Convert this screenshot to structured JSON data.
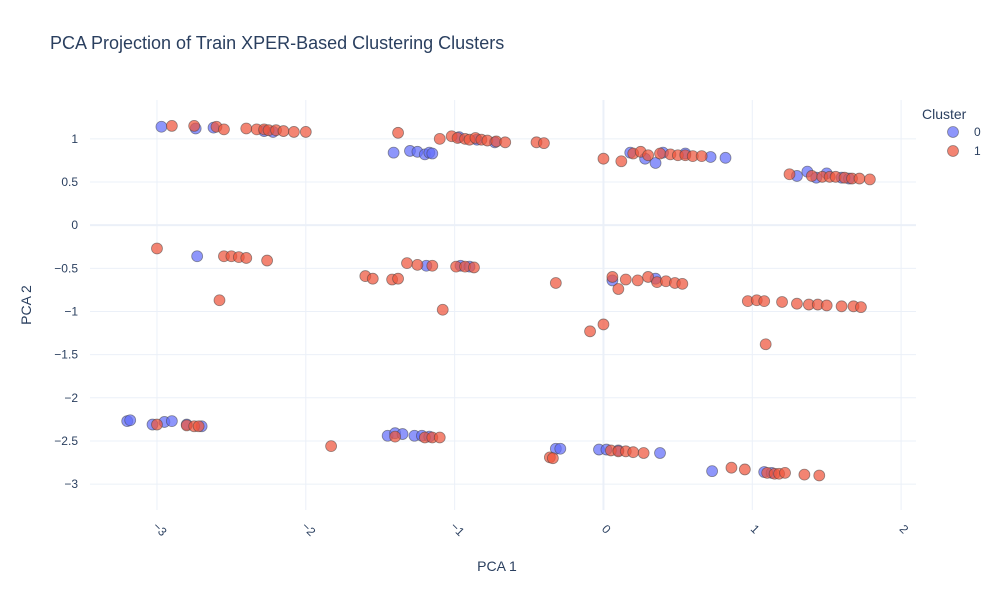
{
  "chart_data": {
    "type": "scatter",
    "title": "PCA Projection of Train XPER-Based Clustering Clusters",
    "xlabel": "PCA 1",
    "ylabel": "PCA 2",
    "xlim": [
      -3.45,
      2.1
    ],
    "ylim": [
      -3.3,
      1.45
    ],
    "x_ticks": [
      -3,
      -2,
      -1,
      0,
      1,
      2
    ],
    "x_tick_labels": [
      "−3",
      "−2",
      "−1",
      "0",
      "1",
      "2"
    ],
    "y_ticks": [
      1,
      0.5,
      0,
      -0.5,
      -1,
      -1.5,
      -2,
      -2.5,
      -3
    ],
    "y_tick_labels": [
      "1",
      "0.5",
      "0",
      "−0.5",
      "−1",
      "−1.5",
      "−2",
      "−2.5",
      "−3"
    ],
    "grid": true,
    "legend": {
      "title": "Cluster",
      "position": "top-right"
    },
    "colors": {
      "0": "#636efa",
      "1": "#ef553b"
    },
    "series": [
      {
        "name": "0",
        "points": [
          [
            -2.97,
            1.14
          ],
          [
            -2.74,
            1.12
          ],
          [
            -2.62,
            1.13
          ],
          [
            -2.28,
            1.09
          ],
          [
            -2.22,
            1.08
          ],
          [
            -1.41,
            0.84
          ],
          [
            -1.3,
            0.86
          ],
          [
            -1.25,
            0.85
          ],
          [
            -1.2,
            0.82
          ],
          [
            -1.17,
            0.84
          ],
          [
            -1.15,
            0.83
          ],
          [
            -0.97,
            1.02
          ],
          [
            -0.85,
            0.99
          ],
          [
            -0.73,
            0.96
          ],
          [
            0.18,
            0.84
          ],
          [
            0.28,
            0.77
          ],
          [
            0.35,
            0.72
          ],
          [
            0.4,
            0.84
          ],
          [
            0.55,
            0.83
          ],
          [
            0.72,
            0.79
          ],
          [
            0.82,
            0.78
          ],
          [
            1.3,
            0.57
          ],
          [
            1.37,
            0.62
          ],
          [
            1.43,
            0.55
          ],
          [
            1.5,
            0.6
          ],
          [
            1.6,
            0.55
          ],
          [
            1.65,
            0.54
          ],
          [
            -2.73,
            -0.36
          ],
          [
            -1.19,
            -0.47
          ],
          [
            -0.96,
            -0.47
          ],
          [
            -0.9,
            -0.48
          ],
          [
            0.06,
            -0.64
          ],
          [
            0.35,
            -0.62
          ],
          [
            -3.2,
            -2.27
          ],
          [
            -3.18,
            -2.26
          ],
          [
            -3.03,
            -2.31
          ],
          [
            -2.95,
            -2.28
          ],
          [
            -2.9,
            -2.27
          ],
          [
            -2.8,
            -2.31
          ],
          [
            -2.7,
            -2.33
          ],
          [
            -1.45,
            -2.44
          ],
          [
            -1.4,
            -2.41
          ],
          [
            -1.35,
            -2.42
          ],
          [
            -1.27,
            -2.44
          ],
          [
            -1.22,
            -2.44
          ],
          [
            -1.17,
            -2.45
          ],
          [
            -0.32,
            -2.59
          ],
          [
            -0.29,
            -2.59
          ],
          [
            -0.03,
            -2.6
          ],
          [
            0.02,
            -2.6
          ],
          [
            0.1,
            -2.61
          ],
          [
            0.38,
            -2.64
          ],
          [
            0.73,
            -2.85
          ],
          [
            1.08,
            -2.86
          ],
          [
            1.13,
            -2.87
          ]
        ]
      },
      {
        "name": "1",
        "points": [
          [
            -2.9,
            1.15
          ],
          [
            -2.75,
            1.15
          ],
          [
            -2.6,
            1.14
          ],
          [
            -2.55,
            1.11
          ],
          [
            -2.4,
            1.12
          ],
          [
            -2.33,
            1.11
          ],
          [
            -2.28,
            1.11
          ],
          [
            -2.25,
            1.1
          ],
          [
            -2.2,
            1.1
          ],
          [
            -2.15,
            1.09
          ],
          [
            -2.08,
            1.08
          ],
          [
            -2.0,
            1.08
          ],
          [
            -1.38,
            1.07
          ],
          [
            -1.1,
            1.0
          ],
          [
            -1.02,
            1.03
          ],
          [
            -0.98,
            1.01
          ],
          [
            -0.93,
            1.0
          ],
          [
            -0.9,
            0.99
          ],
          [
            -0.86,
            1.01
          ],
          [
            -0.82,
            0.99
          ],
          [
            -0.78,
            0.98
          ],
          [
            -0.72,
            0.97
          ],
          [
            -0.66,
            0.96
          ],
          [
            -0.45,
            0.96
          ],
          [
            -0.4,
            0.95
          ],
          [
            0.0,
            0.77
          ],
          [
            0.12,
            0.74
          ],
          [
            0.2,
            0.83
          ],
          [
            0.25,
            0.85
          ],
          [
            0.3,
            0.81
          ],
          [
            0.38,
            0.83
          ],
          [
            0.45,
            0.82
          ],
          [
            0.5,
            0.81
          ],
          [
            0.55,
            0.81
          ],
          [
            0.6,
            0.8
          ],
          [
            0.66,
            0.8
          ],
          [
            1.25,
            0.59
          ],
          [
            1.4,
            0.57
          ],
          [
            1.47,
            0.56
          ],
          [
            1.52,
            0.56
          ],
          [
            1.56,
            0.56
          ],
          [
            1.62,
            0.55
          ],
          [
            1.67,
            0.54
          ],
          [
            1.72,
            0.54
          ],
          [
            1.79,
            0.53
          ],
          [
            -3.0,
            -0.27
          ],
          [
            -2.55,
            -0.36
          ],
          [
            -2.5,
            -0.36
          ],
          [
            -2.45,
            -0.37
          ],
          [
            -2.4,
            -0.38
          ],
          [
            -2.26,
            -0.41
          ],
          [
            -2.58,
            -0.87
          ],
          [
            -1.6,
            -0.59
          ],
          [
            -1.55,
            -0.62
          ],
          [
            -1.42,
            -0.63
          ],
          [
            -1.38,
            -0.62
          ],
          [
            -1.32,
            -0.44
          ],
          [
            -1.25,
            -0.46
          ],
          [
            -1.15,
            -0.47
          ],
          [
            -1.08,
            -0.98
          ],
          [
            -0.99,
            -0.48
          ],
          [
            -0.93,
            -0.48
          ],
          [
            -0.87,
            -0.49
          ],
          [
            -0.32,
            -0.67
          ],
          [
            0.06,
            -0.6
          ],
          [
            0.1,
            -0.74
          ],
          [
            0.15,
            -0.63
          ],
          [
            0.23,
            -0.64
          ],
          [
            0.3,
            -0.6
          ],
          [
            0.36,
            -0.66
          ],
          [
            0.42,
            -0.65
          ],
          [
            0.48,
            -0.67
          ],
          [
            0.53,
            -0.68
          ],
          [
            -0.09,
            -1.23
          ],
          [
            0.0,
            -1.15
          ],
          [
            0.97,
            -0.88
          ],
          [
            1.03,
            -0.87
          ],
          [
            1.08,
            -0.88
          ],
          [
            1.2,
            -0.89
          ],
          [
            1.3,
            -0.91
          ],
          [
            1.38,
            -0.92
          ],
          [
            1.44,
            -0.92
          ],
          [
            1.5,
            -0.93
          ],
          [
            1.6,
            -0.94
          ],
          [
            1.68,
            -0.94
          ],
          [
            1.73,
            -0.95
          ],
          [
            1.09,
            -1.38
          ],
          [
            -3.0,
            -2.31
          ],
          [
            -2.8,
            -2.32
          ],
          [
            -2.75,
            -2.33
          ],
          [
            -2.72,
            -2.33
          ],
          [
            -1.83,
            -2.56
          ],
          [
            -1.4,
            -2.45
          ],
          [
            -1.2,
            -2.46
          ],
          [
            -1.15,
            -2.46
          ],
          [
            -1.1,
            -2.46
          ],
          [
            -0.36,
            -2.69
          ],
          [
            -0.34,
            -2.7
          ],
          [
            0.05,
            -2.61
          ],
          [
            0.1,
            -2.62
          ],
          [
            0.15,
            -2.62
          ],
          [
            0.2,
            -2.63
          ],
          [
            0.27,
            -2.64
          ],
          [
            0.86,
            -2.81
          ],
          [
            0.95,
            -2.83
          ],
          [
            1.1,
            -2.87
          ],
          [
            1.15,
            -2.88
          ],
          [
            1.18,
            -2.88
          ],
          [
            1.22,
            -2.87
          ],
          [
            1.35,
            -2.89
          ],
          [
            1.45,
            -2.9
          ]
        ]
      }
    ]
  }
}
